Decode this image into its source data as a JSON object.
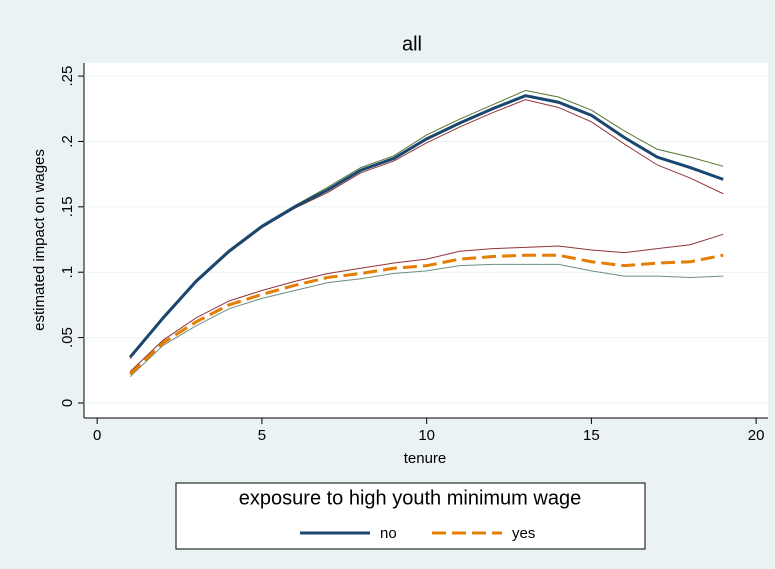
{
  "chart_data": {
    "type": "line",
    "title": "all",
    "xlabel": "tenure",
    "ylabel": "estimated impact on wages",
    "x": [
      1,
      2,
      3,
      4,
      5,
      6,
      7,
      8,
      9,
      10,
      11,
      12,
      13,
      14,
      15,
      16,
      17,
      18,
      19
    ],
    "series": [
      {
        "name": "no",
        "color": "#1a476f",
        "dash": false,
        "values": [
          0.035,
          0.065,
          0.093,
          0.116,
          0.135,
          0.15,
          0.163,
          0.178,
          0.187,
          0.202,
          0.214,
          0.225,
          0.235,
          0.23,
          0.22,
          0.203,
          0.188,
          0.18,
          0.171
        ],
        "upper": [
          0.036,
          0.066,
          0.094,
          0.117,
          0.136,
          0.151,
          0.165,
          0.18,
          0.189,
          0.205,
          0.217,
          0.228,
          0.239,
          0.234,
          0.224,
          0.208,
          0.194,
          0.188,
          0.181
        ],
        "lower": [
          0.034,
          0.064,
          0.092,
          0.115,
          0.134,
          0.149,
          0.161,
          0.176,
          0.185,
          0.199,
          0.211,
          0.222,
          0.232,
          0.226,
          0.215,
          0.198,
          0.182,
          0.172,
          0.16
        ],
        "upper_color": "#55752f",
        "lower_color": "#90353b"
      },
      {
        "name": "yes",
        "color": "#e37e00",
        "dash": true,
        "values": [
          0.022,
          0.046,
          0.062,
          0.075,
          0.083,
          0.09,
          0.096,
          0.099,
          0.103,
          0.105,
          0.11,
          0.112,
          0.113,
          0.113,
          0.108,
          0.105,
          0.107,
          0.108,
          0.113
        ],
        "upper": [
          0.024,
          0.048,
          0.065,
          0.078,
          0.086,
          0.093,
          0.099,
          0.103,
          0.107,
          0.11,
          0.116,
          0.118,
          0.119,
          0.12,
          0.117,
          0.115,
          0.118,
          0.121,
          0.129
        ],
        "lower": [
          0.02,
          0.044,
          0.059,
          0.072,
          0.08,
          0.086,
          0.092,
          0.095,
          0.099,
          0.101,
          0.105,
          0.106,
          0.106,
          0.106,
          0.101,
          0.097,
          0.097,
          0.096,
          0.097
        ],
        "upper_color": "#90353b",
        "lower_color": "#6e8e84"
      }
    ],
    "xlim": [
      -0.4,
      20.36
    ],
    "ylim": [
      -0.0115,
      0.26
    ],
    "xticks": [
      0,
      5,
      10,
      15,
      20
    ],
    "yticks": [
      0,
      {
        "value": 0.05,
        "label": ".05"
      },
      {
        "value": 0.1,
        "label": ".1"
      },
      {
        "value": 0.15,
        "label": ".15"
      },
      {
        "value": 0.2,
        "label": ".2"
      },
      {
        "value": 0.25,
        "label": ".25"
      }
    ],
    "grid": true,
    "legend_title": "exposure to high youth minimum wage",
    "legend_position": "bottom"
  }
}
